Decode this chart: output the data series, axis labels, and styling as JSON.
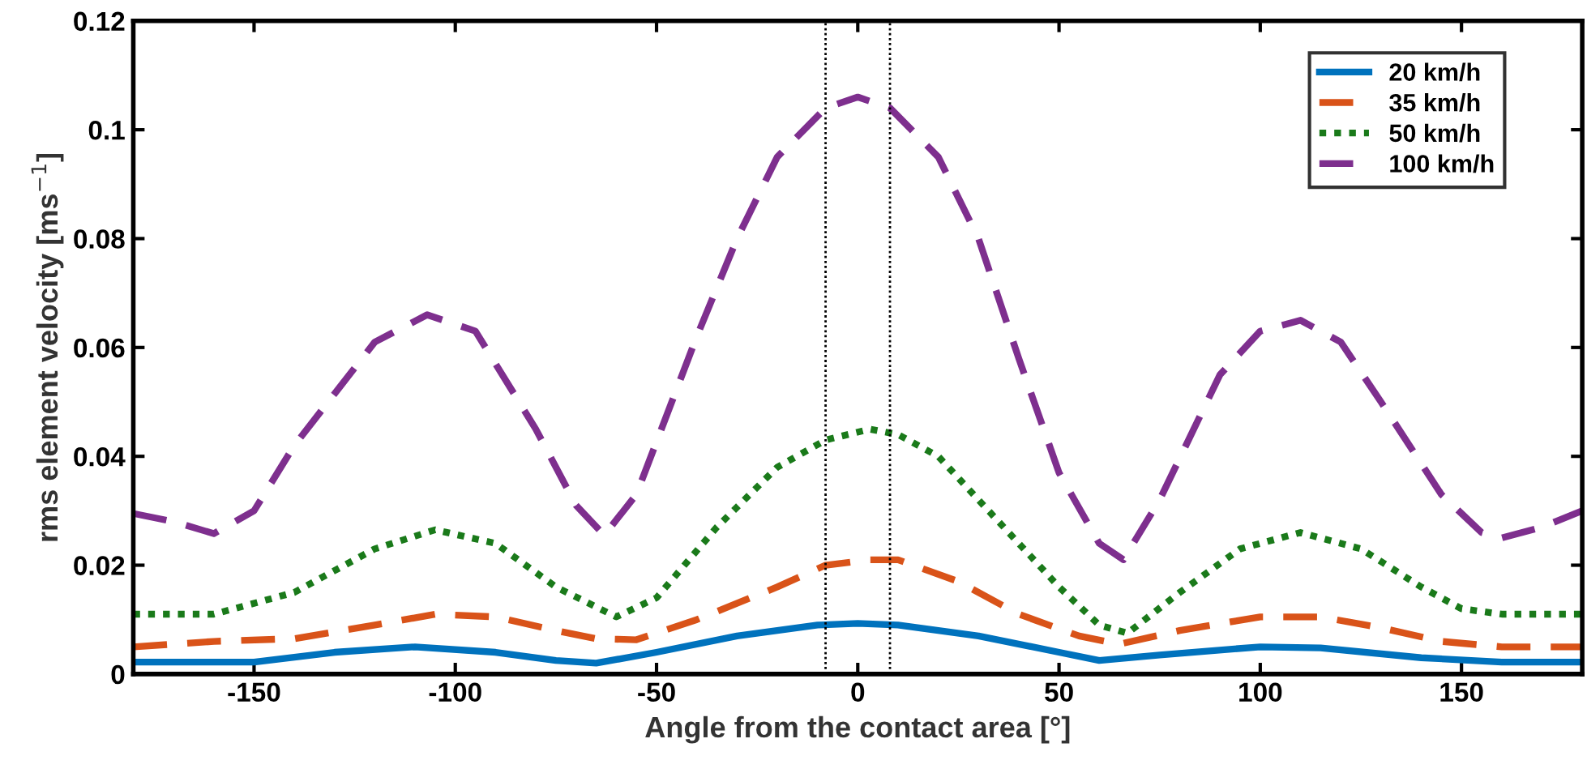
{
  "chart_data": {
    "type": "line",
    "xlabel": "Angle from the contact area [°]",
    "ylabel": "rms element velocity [ms$^{−1}$]",
    "xlim": [
      -180,
      180
    ],
    "ylim": [
      0,
      0.12
    ],
    "xticks": [
      -150,
      -100,
      -50,
      0,
      50,
      100,
      150
    ],
    "yticks": [
      0,
      0.02,
      0.04,
      0.06,
      0.08,
      {
        "value": 0.1,
        "label": "0.1"
      },
      0.12
    ],
    "grid": false,
    "legend": "top right",
    "ref_lines": [
      {
        "axis": "x",
        "value": -8,
        "color": "#000000",
        "line_style": "dotted"
      },
      {
        "axis": "x",
        "value": 8,
        "color": "#000000",
        "line_style": "dotted"
      }
    ],
    "series": [
      {
        "name": "20 km/h",
        "color": "#0072bd",
        "line_style": "solid",
        "x": [
          -180,
          -150,
          -130,
          -110,
          -90,
          -75,
          -65,
          -50,
          -30,
          -10,
          0,
          10,
          30,
          50,
          60,
          75,
          100,
          115,
          140,
          160,
          180
        ],
        "values": [
          0.0022,
          0.0022,
          0.004,
          0.005,
          0.004,
          0.0025,
          0.002,
          0.004,
          0.007,
          0.009,
          0.0093,
          0.009,
          0.007,
          0.004,
          0.0025,
          0.0035,
          0.005,
          0.0048,
          0.003,
          0.0022,
          0.0022
        ]
      },
      {
        "name": "35 km/h",
        "color": "#d95319",
        "line_style": "dashed",
        "x": [
          -180,
          -160,
          -140,
          -120,
          -105,
          -90,
          -75,
          -65,
          -55,
          -40,
          -20,
          -8,
          3,
          10,
          25,
          40,
          55,
          65,
          80,
          100,
          115,
          130,
          145,
          160,
          180
        ],
        "values": [
          0.005,
          0.006,
          0.0065,
          0.009,
          0.011,
          0.0105,
          0.008,
          0.0065,
          0.0063,
          0.01,
          0.016,
          0.02,
          0.021,
          0.021,
          0.017,
          0.011,
          0.007,
          0.0055,
          0.008,
          0.0105,
          0.0105,
          0.0085,
          0.006,
          0.005,
          0.005
        ]
      },
      {
        "name": "50 km/h",
        "color": "#1a7a1a",
        "line_style": "dotted",
        "x": [
          -180,
          -160,
          -140,
          -120,
          -105,
          -90,
          -75,
          -60,
          -50,
          -35,
          -20,
          -8,
          3,
          10,
          20,
          35,
          50,
          60,
          67,
          80,
          95,
          110,
          125,
          140,
          150,
          160,
          180
        ],
        "values": [
          0.011,
          0.011,
          0.015,
          0.023,
          0.0265,
          0.024,
          0.016,
          0.0105,
          0.014,
          0.027,
          0.038,
          0.043,
          0.045,
          0.044,
          0.04,
          0.028,
          0.016,
          0.009,
          0.0075,
          0.015,
          0.023,
          0.026,
          0.023,
          0.016,
          0.012,
          0.011,
          0.011
        ]
      },
      {
        "name": "100 km/h",
        "color": "#7e2f8e",
        "line_style": "dashed",
        "x": [
          -180,
          -170,
          -160,
          -150,
          -140,
          -120,
          -107,
          -95,
          -80,
          -70,
          -63,
          -55,
          -40,
          -30,
          -20,
          -8,
          0,
          8,
          20,
          30,
          40,
          50,
          60,
          66,
          75,
          90,
          100,
          110,
          120,
          130,
          145,
          155,
          160,
          170,
          180
        ],
        "values": [
          0.0295,
          0.028,
          0.0258,
          0.03,
          0.042,
          0.061,
          0.066,
          0.063,
          0.045,
          0.031,
          0.0255,
          0.033,
          0.062,
          0.08,
          0.095,
          0.104,
          0.106,
          0.104,
          0.095,
          0.08,
          0.058,
          0.037,
          0.024,
          0.021,
          0.032,
          0.055,
          0.063,
          0.065,
          0.061,
          0.05,
          0.033,
          0.026,
          0.025,
          0.027,
          0.03
        ]
      }
    ]
  }
}
